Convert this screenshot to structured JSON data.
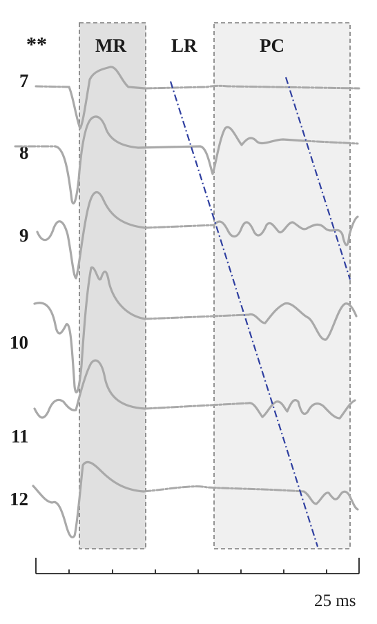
{
  "labels": {
    "significance": "**",
    "regions": {
      "mr": "MR",
      "lr": "LR",
      "pc": "PC"
    },
    "scale_bar": "25 ms"
  },
  "traces": [
    {
      "id": "7",
      "label": "7"
    },
    {
      "id": "8",
      "label": "8"
    },
    {
      "id": "9",
      "label": "9"
    },
    {
      "id": "10",
      "label": "10"
    },
    {
      "id": "11",
      "label": "11"
    },
    {
      "id": "12",
      "label": "12"
    }
  ],
  "colors": {
    "trace": "#a9a9a9",
    "mr_fill": "#e0e0e0",
    "pc_fill": "#f0f0f0",
    "propagation_line": "#2f3fa0",
    "text": "#1a1a1a"
  }
}
